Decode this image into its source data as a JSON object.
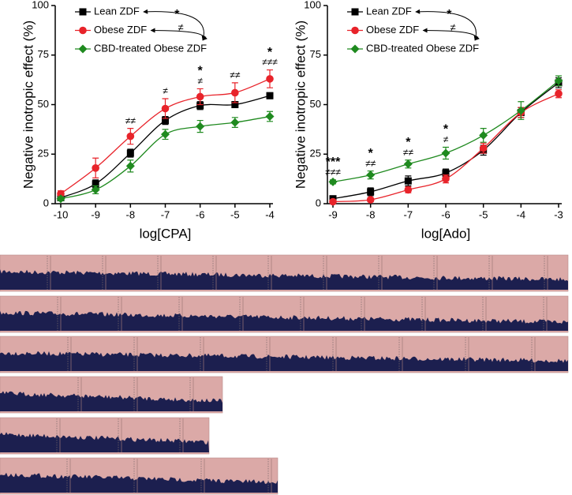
{
  "chart_data": [
    {
      "type": "line",
      "x_label": "log[CPA]",
      "y_label": "Negative inotropic effect (%)",
      "x": [
        -10,
        -9,
        -8,
        -7,
        -6,
        -5,
        -4
      ],
      "xlim": [
        -10,
        -4
      ],
      "xticks": [
        -10,
        -9,
        -8,
        -7,
        -6,
        -5,
        -4
      ],
      "ylim": [
        0,
        100
      ],
      "yticks": [
        0,
        25,
        50,
        75,
        100
      ],
      "series": [
        {
          "name": "Lean ZDF",
          "color": "#000000",
          "marker": "square",
          "values": [
            3,
            10,
            25.5,
            42,
            49.5,
            50,
            54.5
          ],
          "errors": [
            1,
            2,
            2,
            2,
            2,
            1.5,
            1.5
          ]
        },
        {
          "name": "Obese ZDF",
          "color": "#e8232a",
          "marker": "circle",
          "values": [
            5,
            18,
            34,
            48,
            54,
            56,
            63
          ],
          "errors": [
            1.5,
            5,
            4,
            5,
            4,
            5,
            4.5
          ]
        },
        {
          "name": "CBD-treated Obese ZDF",
          "color": "#1f8a1f",
          "marker": "diamond",
          "values": [
            2.5,
            7,
            19,
            35,
            39,
            41,
            44
          ],
          "errors": [
            1,
            2,
            3,
            2.5,
            3,
            2.5,
            2.5
          ]
        }
      ],
      "legend_annotations": [
        "*",
        "≠"
      ],
      "annotations": [
        {
          "x": -8,
          "lines": [
            "≠≠"
          ]
        },
        {
          "x": -7,
          "lines": [
            "≠"
          ]
        },
        {
          "x": -6,
          "lines": [
            "*",
            "≠"
          ]
        },
        {
          "x": -5,
          "lines": [
            "≠≠"
          ]
        },
        {
          "x": -4,
          "lines": [
            "*",
            "≠≠≠"
          ]
        }
      ]
    },
    {
      "type": "line",
      "x_label": "log[Ado]",
      "y_label": "Negative inotropic effect (%)",
      "x": [
        -9,
        -8,
        -7,
        -6,
        -5,
        -4,
        -3
      ],
      "xlim": [
        -9,
        -3
      ],
      "xticks": [
        -9,
        -8,
        -7,
        -6,
        -5,
        -4,
        -3
      ],
      "ylim": [
        0,
        100
      ],
      "yticks": [
        0,
        25,
        50,
        75,
        100
      ],
      "series": [
        {
          "name": "Lean ZDF",
          "color": "#000000",
          "marker": "square",
          "values": [
            2.5,
            6,
            11.5,
            15.5,
            27,
            46,
            61
          ],
          "errors": [
            1,
            2,
            2.5,
            2,
            2.5,
            2.5,
            2.5
          ]
        },
        {
          "name": "Obese ZDF",
          "color": "#e8232a",
          "marker": "circle",
          "values": [
            1,
            2,
            7,
            12.5,
            28,
            46,
            55.5
          ],
          "errors": [
            0.5,
            1,
            1.5,
            2,
            2.5,
            2.5,
            2
          ]
        },
        {
          "name": "CBD-treated Obese ZDF",
          "color": "#1f8a1f",
          "marker": "diamond",
          "values": [
            11,
            14.5,
            20,
            25.5,
            34.5,
            47,
            62
          ],
          "errors": [
            1,
            2,
            2,
            3,
            3.5,
            4.5,
            2.5
          ]
        }
      ],
      "legend_annotations": [
        "*",
        "≠"
      ],
      "annotations": [
        {
          "x": -9,
          "lines": [
            "***",
            "≠≠≠"
          ]
        },
        {
          "x": -8,
          "lines": [
            "*",
            "≠≠"
          ]
        },
        {
          "x": -7,
          "lines": [
            "*",
            "≠≠"
          ]
        },
        {
          "x": -6,
          "lines": [
            "*",
            "≠"
          ]
        }
      ]
    }
  ]
}
